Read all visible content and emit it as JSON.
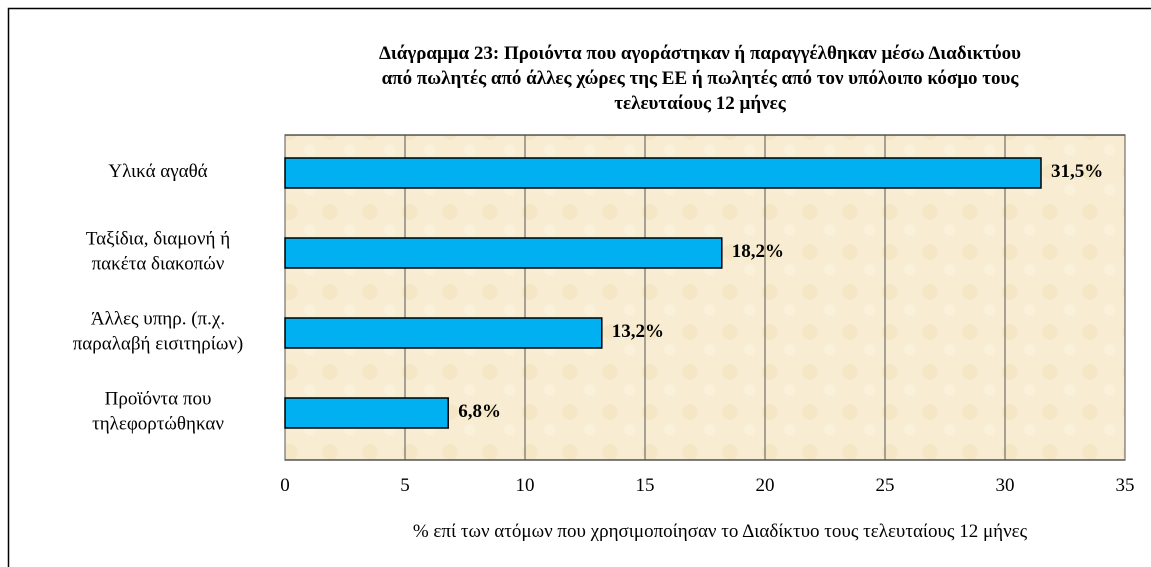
{
  "chart_data": {
    "type": "bar",
    "orientation": "horizontal",
    "title": "Διάγραμμα 23: Προιόντα που αγοράστηκαν ή παραγγέλθηκαν μέσω Διαδικτύου\nαπό πωλητές από άλλες χώρες της ΕΕ ή πωλητές από τον υπόλοιπο κόσμο τους\nτελευταίους 12 μήνες",
    "categories": [
      "Υλικά αγαθά",
      "Ταξίδια, διαμονή ή\nπακέτα διακοπών",
      "Άλλες υπηρ. (π.χ.\nπαραλαβή εισιτηρίων)",
      "Προϊόντα που\nτηλεφορτώθηκαν"
    ],
    "values": [
      31.5,
      18.2,
      13.2,
      6.8
    ],
    "value_labels": [
      "31,5%",
      "18,2%",
      "13,2%",
      "6,8%"
    ],
    "color": "#00b0f0",
    "xlim": [
      0,
      35
    ],
    "xticks": [
      0,
      5,
      10,
      15,
      20,
      25,
      30,
      35
    ],
    "xlabel": "% επί των ατόμων που χρησιμοποίησαν το Διαδίκτυο τους τελευταίους 12 μήνες",
    "grid": true
  }
}
